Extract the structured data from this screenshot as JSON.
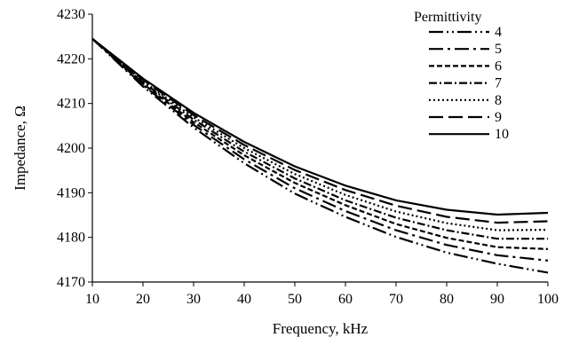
{
  "chart_data": {
    "type": "line",
    "xlabel": "Frequency, kHz",
    "ylabel": "Impedance, Ω",
    "xlim": [
      10,
      100
    ],
    "ylim": [
      4170,
      4230
    ],
    "xticks": [
      10,
      20,
      30,
      40,
      50,
      60,
      70,
      80,
      90,
      100
    ],
    "yticks": [
      4170,
      4180,
      4190,
      4200,
      4210,
      4220,
      4230
    ],
    "grid": false,
    "legend": {
      "title": "Permittivity",
      "placement": "top-right"
    },
    "x": [
      10,
      20,
      30,
      40,
      50,
      60,
      70,
      80,
      90,
      100
    ],
    "series": [
      {
        "name": "4",
        "dash": "long-dash-dot-dot",
        "values": [
          4224.5,
          4213.8,
          4204.6,
          4196.6,
          4189.8,
          4184.6,
          4180.1,
          4176.6,
          4174.1,
          4172.1
        ]
      },
      {
        "name": "5",
        "dash": "long-dash-dot",
        "values": [
          4224.5,
          4214.1,
          4205.2,
          4197.5,
          4191.0,
          4185.9,
          4181.6,
          4178.3,
          4176.0,
          4174.8
        ]
      },
      {
        "name": "6",
        "dash": "dash",
        "values": [
          4224.5,
          4214.4,
          4205.8,
          4198.4,
          4192.2,
          4187.2,
          4183.0,
          4179.9,
          4177.8,
          4177.4
        ]
      },
      {
        "name": "7",
        "dash": "dash-dot",
        "values": [
          4224.5,
          4214.7,
          4206.4,
          4199.2,
          4193.2,
          4188.3,
          4184.4,
          4181.6,
          4179.7,
          4179.7
        ]
      },
      {
        "name": "8",
        "dash": "dot",
        "values": [
          4224.5,
          4215.0,
          4206.9,
          4200.0,
          4194.2,
          4189.5,
          4185.8,
          4183.2,
          4181.6,
          4181.7
        ]
      },
      {
        "name": "9",
        "dash": "long-dash",
        "values": [
          4224.5,
          4215.3,
          4207.4,
          4200.7,
          4195.1,
          4190.6,
          4187.1,
          4184.6,
          4183.3,
          4183.6
        ]
      },
      {
        "name": "10",
        "dash": "solid",
        "values": [
          4224.5,
          4215.6,
          4207.9,
          4201.4,
          4195.9,
          4191.6,
          4188.3,
          4186.2,
          4185.1,
          4185.5
        ]
      }
    ]
  }
}
